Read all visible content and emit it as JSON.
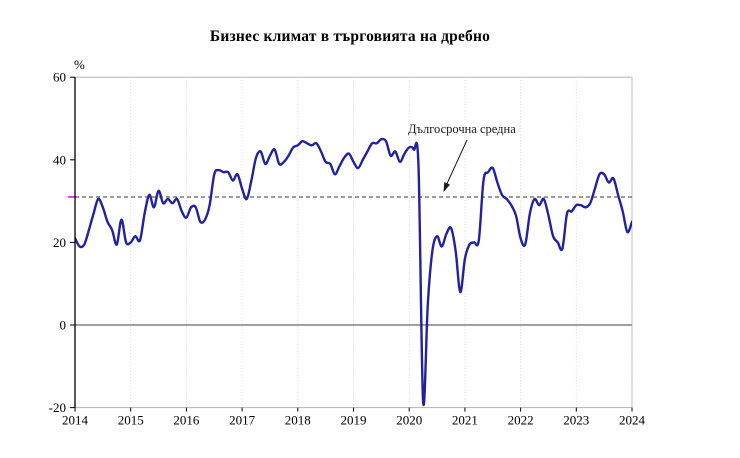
{
  "chart": {
    "title": "Бизнес климат в търговията на дребно",
    "unit_label": "%",
    "annotation_label": "Дългосрочна средна"
  },
  "chart_data": {
    "type": "line",
    "title": "Бизнес климат в търговията на дребно",
    "xlabel": "",
    "ylabel": "%",
    "x_range": {
      "start": "2014-01",
      "end": "2024-01",
      "interval": "monthly"
    },
    "x_tick_labels": [
      "2014",
      "2015",
      "2016",
      "2017",
      "2018",
      "2019",
      "2020",
      "2021",
      "2022",
      "2023",
      "2024"
    ],
    "y_ticks": [
      60,
      40,
      20,
      0,
      -20
    ],
    "ylim": [
      -20,
      60
    ],
    "grid": "vertical-dotted",
    "legend": false,
    "zero_line": true,
    "annotation": {
      "label": "Дългосрочна средна",
      "points_to": "reference_line"
    },
    "reference_line": {
      "label": "Дългосрочна средна",
      "value": 31,
      "style": "dashed",
      "color": "#3a3a3a",
      "edge_marker_color": "#ff00ff"
    },
    "colors": {
      "series": "#2222a0",
      "zero_line": "#808080",
      "frame": "#b3b3b3",
      "gridline": "#d9d9d9",
      "axis": "#000000"
    },
    "series": [
      {
        "name": "Бизнес климат в търговията на дребно",
        "color": "#2222a0",
        "values": [
          21,
          19,
          19.5,
          23,
          27,
          30.5,
          28.5,
          25,
          23,
          19.5,
          25.5,
          20,
          20,
          21.5,
          20.5,
          27,
          31.5,
          28.5,
          32.5,
          29.5,
          30.5,
          29.5,
          30.5,
          27.5,
          26,
          28.5,
          28.5,
          25,
          25.5,
          29,
          36.5,
          37.5,
          37,
          37,
          35,
          36.5,
          33,
          30.5,
          35,
          40.5,
          42,
          39,
          41,
          42.5,
          39,
          39.5,
          41,
          43,
          43.5,
          44.5,
          44,
          43.5,
          44,
          42,
          39.5,
          39,
          36.5,
          38.5,
          40.5,
          41.5,
          39.5,
          38,
          40,
          42,
          44,
          44,
          45,
          44.5,
          41,
          42,
          39.5,
          41.5,
          43,
          42.5,
          38.5,
          -18.5,
          5,
          18,
          21.5,
          19,
          22,
          23.5,
          18,
          8,
          16,
          19.5,
          20,
          20.5,
          35,
          37,
          38,
          34.5,
          31.5,
          30.5,
          29,
          26.5,
          21,
          19.5,
          27,
          30.5,
          29,
          30.5,
          26.5,
          21.5,
          20,
          18.5,
          27,
          27.5,
          29,
          29,
          28.5,
          29.5,
          33,
          36.5,
          36.5,
          34.5,
          35.5,
          31.5,
          27.5,
          22.5,
          25
        ]
      }
    ]
  }
}
